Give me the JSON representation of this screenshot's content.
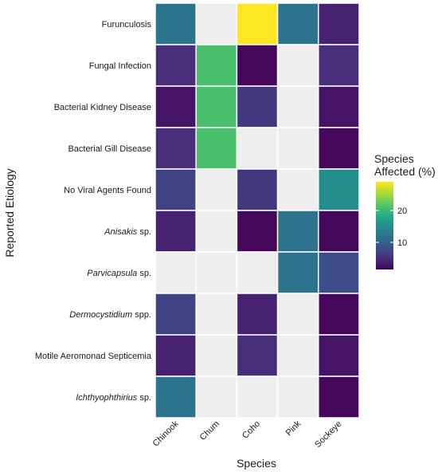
{
  "chart_data": {
    "type": "heatmap",
    "xlabel": "Species",
    "ylabel": "Reported Etiology",
    "x_categories": [
      "Chinook",
      "Chum",
      "Coho",
      "Pink",
      "Sockeye"
    ],
    "y_categories": [
      {
        "label": "Furunculosis",
        "italic": null,
        "rest": null
      },
      {
        "label": "Fungal Infection",
        "italic": null,
        "rest": null
      },
      {
        "label": "Bacterial Kidney Disease",
        "italic": null,
        "rest": null
      },
      {
        "label": "Bacterial Gill Disease",
        "italic": null,
        "rest": null
      },
      {
        "label": "No Viral Agents Found",
        "italic": null,
        "rest": null
      },
      {
        "label": "Anisakis sp.",
        "italic": "Anisakis",
        "rest": " sp."
      },
      {
        "label": "Parvicapsula sp.",
        "italic": "Parvicapsula",
        "rest": " sp."
      },
      {
        "label": "Dermocystidium spp.",
        "italic": "Dermocystidium",
        "rest": " spp."
      },
      {
        "label": "Motile Aeromonad Septicemia",
        "italic": null,
        "rest": null
      },
      {
        "label": "Ichthyophthirius sp.",
        "italic": "Ichthyophthirius",
        "rest": " sp."
      }
    ],
    "values": [
      [
        12,
        null,
        29,
        12,
        4
      ],
      [
        5,
        21,
        2,
        null,
        5
      ],
      [
        3,
        21,
        6,
        null,
        3
      ],
      [
        5,
        21,
        null,
        null,
        2
      ],
      [
        7,
        null,
        6,
        null,
        15
      ],
      [
        4,
        null,
        2,
        12,
        2
      ],
      [
        null,
        null,
        null,
        12,
        8
      ],
      [
        7,
        null,
        4,
        null,
        2
      ],
      [
        4,
        null,
        5,
        null,
        3
      ],
      [
        12,
        null,
        null,
        null,
        2
      ]
    ],
    "missing_color": "#eeeeee",
    "colorscale": "viridis",
    "zlim": [
      1.5,
      29
    ],
    "legend": {
      "title_lines": [
        "Species",
        "Affected (%)"
      ],
      "ticks": [
        10,
        20
      ],
      "position": "right"
    }
  }
}
